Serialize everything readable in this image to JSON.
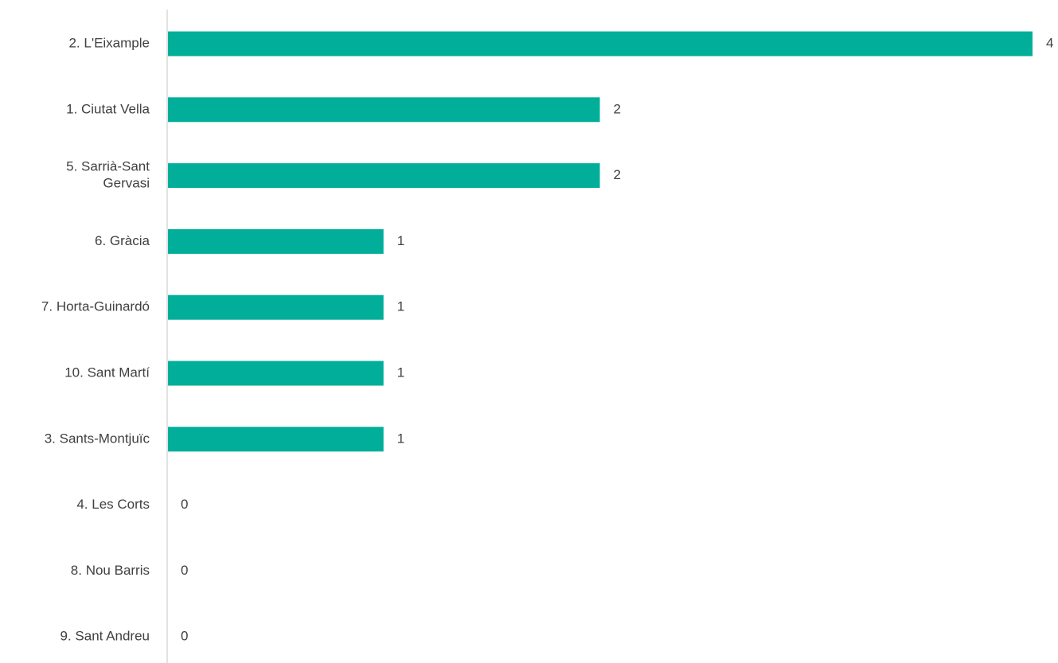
{
  "chart_data": {
    "type": "bar",
    "orientation": "horizontal",
    "categories": [
      "2. L'Eixample",
      "1. Ciutat Vella",
      "5. Sarrià-Sant Gervasi",
      "6. Gràcia",
      "7. Horta-Guinardó",
      "10. Sant Martí",
      "3. Sants-Montjuïc",
      "4. Les Corts",
      "8. Nou Barris",
      "9. Sant Andreu"
    ],
    "category_lines": [
      [
        "2. L'Eixample"
      ],
      [
        "1. Ciutat Vella"
      ],
      [
        "5. Sarrià-Sant",
        "Gervasi"
      ],
      [
        "6. Gràcia"
      ],
      [
        "7. Horta-Guinardó"
      ],
      [
        "10. Sant Martí"
      ],
      [
        "3. Sants-Montjuïc"
      ],
      [
        "4. Les Corts"
      ],
      [
        "8. Nou Barris"
      ],
      [
        "9. Sant Andreu"
      ]
    ],
    "values": [
      4,
      2,
      2,
      1,
      1,
      1,
      1,
      0,
      0,
      0
    ],
    "xlim": [
      0,
      4
    ],
    "bar_color": "#00AE9A",
    "axis_color": "#D9D9D9",
    "text_color": "#404040",
    "data_labels": true,
    "grid": false,
    "legend": "none"
  }
}
